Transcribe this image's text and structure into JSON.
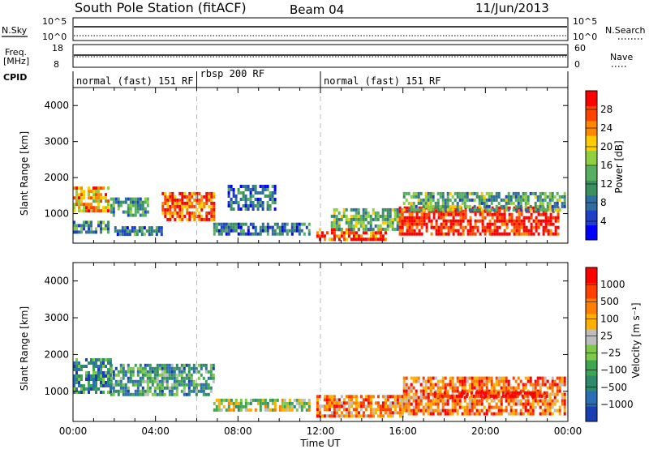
{
  "header": {
    "title": "South Pole Station (fitACF)",
    "beam": "Beam 04",
    "date": "11/Jun/2013"
  },
  "params": {
    "nsky_label": "N.Sky",
    "nsearch_label": "N.Search",
    "freq_label_line1": "Freq.",
    "freq_label_line2": "[MHz]",
    "nave_label": "Nave",
    "cpid_label": "CPID",
    "nsky_ticks": [
      "10^5",
      "10^0"
    ],
    "nsearch_ticks": [
      "10^5",
      "10^0"
    ],
    "freq_ticks": [
      "18",
      "8"
    ],
    "nave_ticks": [
      "60",
      "0"
    ]
  },
  "cpid": {
    "segments": [
      {
        "label": "normal (fast) 151 RF",
        "start": 0,
        "end": 6
      },
      {
        "label": "rbsp 200 RF",
        "start": 6,
        "end": 12
      },
      {
        "label": "normal (fast) 151 RF",
        "start": 12,
        "end": 24
      }
    ]
  },
  "chart_data": [
    {
      "type": "heatmap",
      "name": "power",
      "ylabel": "Slant Range [km]",
      "xlabel": "",
      "xlim": [
        0,
        24
      ],
      "ylim": [
        180,
        4500
      ],
      "yticks": [
        "1000",
        "2000",
        "3000",
        "4000"
      ],
      "colorbar": {
        "label": "Power [dB]",
        "range": [
          0,
          32
        ],
        "ticks": [
          "4",
          "8",
          "12",
          "16",
          "20",
          "24",
          "28"
        ],
        "colors": [
          "#0000ff",
          "#2040c8",
          "#2e6ea0",
          "#3c9060",
          "#56b060",
          "#90d040",
          "#ffcc00",
          "#ff8800",
          "#ff4400",
          "#ff0000"
        ]
      },
      "blobs": [
        {
          "t0": 0.0,
          "t1": 1.7,
          "r0": 1050,
          "r1": 1750,
          "level": 0.7
        },
        {
          "t0": 0.0,
          "t1": 1.7,
          "r0": 500,
          "r1": 800,
          "level": 0.35
        },
        {
          "t0": 1.8,
          "t1": 3.6,
          "r0": 950,
          "r1": 1450,
          "level": 0.35
        },
        {
          "t0": 2.0,
          "t1": 4.3,
          "r0": 450,
          "r1": 650,
          "level": 0.3
        },
        {
          "t0": 4.3,
          "t1": 6.8,
          "r0": 850,
          "r1": 1600,
          "level": 0.85
        },
        {
          "t0": 6.8,
          "t1": 11.5,
          "r0": 450,
          "r1": 750,
          "level": 0.25
        },
        {
          "t0": 7.5,
          "t1": 9.8,
          "r0": 1100,
          "r1": 1800,
          "level": 0.25
        },
        {
          "t0": 11.8,
          "t1": 15.2,
          "r0": 300,
          "r1": 600,
          "level": 0.85
        },
        {
          "t0": 12.5,
          "t1": 16.0,
          "r0": 600,
          "r1": 1150,
          "level": 0.45
        },
        {
          "t0": 15.8,
          "t1": 23.5,
          "r0": 400,
          "r1": 1200,
          "level": 0.95
        },
        {
          "t0": 16.0,
          "t1": 23.9,
          "r0": 1100,
          "r1": 1600,
          "level": 0.4
        }
      ]
    },
    {
      "type": "heatmap",
      "name": "velocity",
      "ylabel": "Slant Range [km]",
      "xlabel": "Time UT",
      "xlim": [
        0,
        24
      ],
      "ylim": [
        180,
        4500
      ],
      "xticks": [
        "00:00",
        "04:00",
        "08:00",
        "12:00",
        "16:00",
        "20:00",
        "00:00"
      ],
      "yticks": [
        "1000",
        "2000",
        "3000",
        "4000"
      ],
      "colorbar": {
        "label": "Velocity [m s⁻¹]",
        "ticks": [
          "1000",
          "500",
          "100",
          "25",
          "−25",
          "−100",
          "−500",
          "−1000"
        ],
        "colors": [
          "#1a3fb0",
          "#2c6eb4",
          "#2e8a6a",
          "#3ea650",
          "#7ec84a",
          "#bdbdbd",
          "#ffb000",
          "#ff8000",
          "#ff4000",
          "#ff0000"
        ]
      },
      "blobs": [
        {
          "t0": 0.0,
          "t1": 1.8,
          "r0": 1000,
          "r1": 1900,
          "level": 0.25
        },
        {
          "t0": 1.8,
          "t1": 6.8,
          "r0": 900,
          "r1": 1750,
          "level": 0.3
        },
        {
          "t0": 6.8,
          "t1": 11.5,
          "r0": 450,
          "r1": 800,
          "level": 0.5
        },
        {
          "t0": 11.8,
          "t1": 16.0,
          "r0": 300,
          "r1": 900,
          "level": 0.72
        },
        {
          "t0": 16.0,
          "t1": 23.9,
          "r0": 400,
          "r1": 1400,
          "level": 0.78
        },
        {
          "t0": 17.5,
          "t1": 23.0,
          "r0": 850,
          "r1": 1000,
          "level": 0.95
        }
      ]
    }
  ],
  "colors": {
    "axis": "#000000",
    "dashed_marker": "#bbbbbb"
  }
}
